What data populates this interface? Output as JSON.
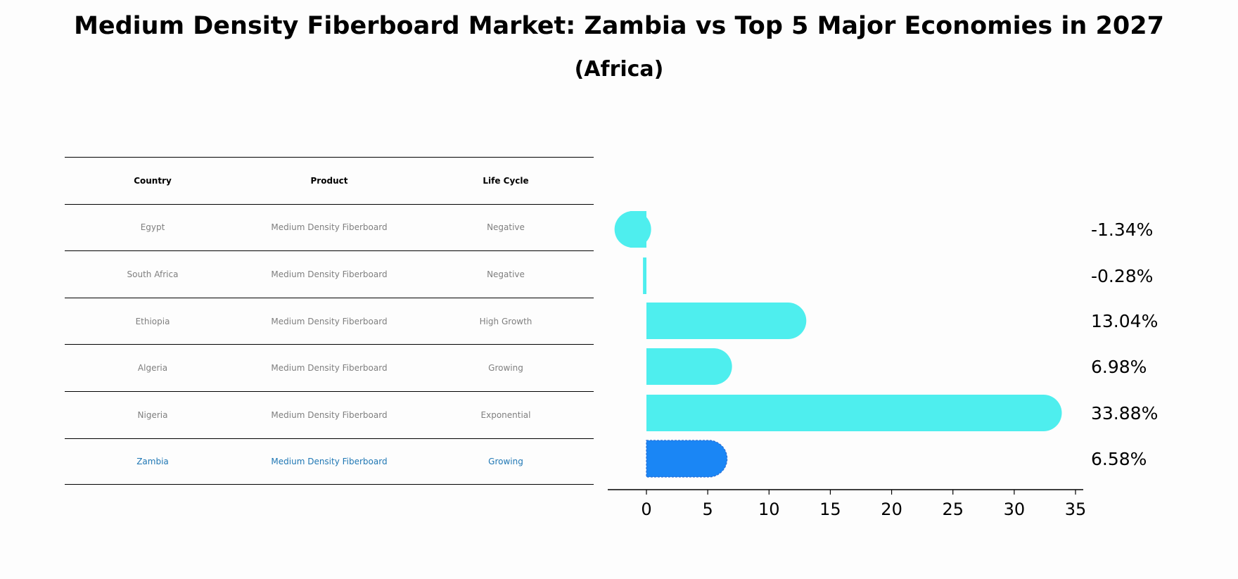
{
  "title": "Medium Density Fiberboard Market: Zambia vs Top 5 Major Economies in 2027",
  "subtitle": "(Africa)",
  "table": {
    "headers": [
      "Country",
      "Product",
      "Life Cycle"
    ],
    "rows": [
      {
        "country": "Egypt",
        "product": "Medium Density Fiberboard",
        "life_cycle": "Negative"
      },
      {
        "country": "South Africa",
        "product": "Medium Density Fiberboard",
        "life_cycle": "Negative"
      },
      {
        "country": "Ethiopia",
        "product": "Medium Density Fiberboard",
        "life_cycle": "High Growth"
      },
      {
        "country": "Algeria",
        "product": "Medium Density Fiberboard",
        "life_cycle": "Growing"
      },
      {
        "country": "Nigeria",
        "product": "Medium Density Fiberboard",
        "life_cycle": "Exponential"
      },
      {
        "country": "Zambia",
        "product": "Medium Density Fiberboard",
        "life_cycle": "Growing"
      }
    ]
  },
  "colors": {
    "bar": "#4eeeee",
    "highlight_bar": "#1a86f5",
    "highlight_text": "#1f77b4",
    "muted_text": "#7f7f7f"
  },
  "chart_data": {
    "type": "bar",
    "orientation": "horizontal",
    "categories": [
      "Egypt",
      "South Africa",
      "Ethiopia",
      "Algeria",
      "Nigeria",
      "Zambia"
    ],
    "values": [
      -1.34,
      -0.28,
      13.04,
      6.98,
      33.88,
      6.58
    ],
    "value_labels": [
      "-1.34%",
      "-0.28%",
      "13.04%",
      "6.98%",
      "33.88%",
      "6.58%"
    ],
    "highlight": "Zambia",
    "xlim": [
      -3.2,
      35.7
    ],
    "xticks": [
      0,
      5,
      10,
      15,
      20,
      25,
      30,
      35
    ],
    "xlabel": "",
    "ylabel": ""
  }
}
